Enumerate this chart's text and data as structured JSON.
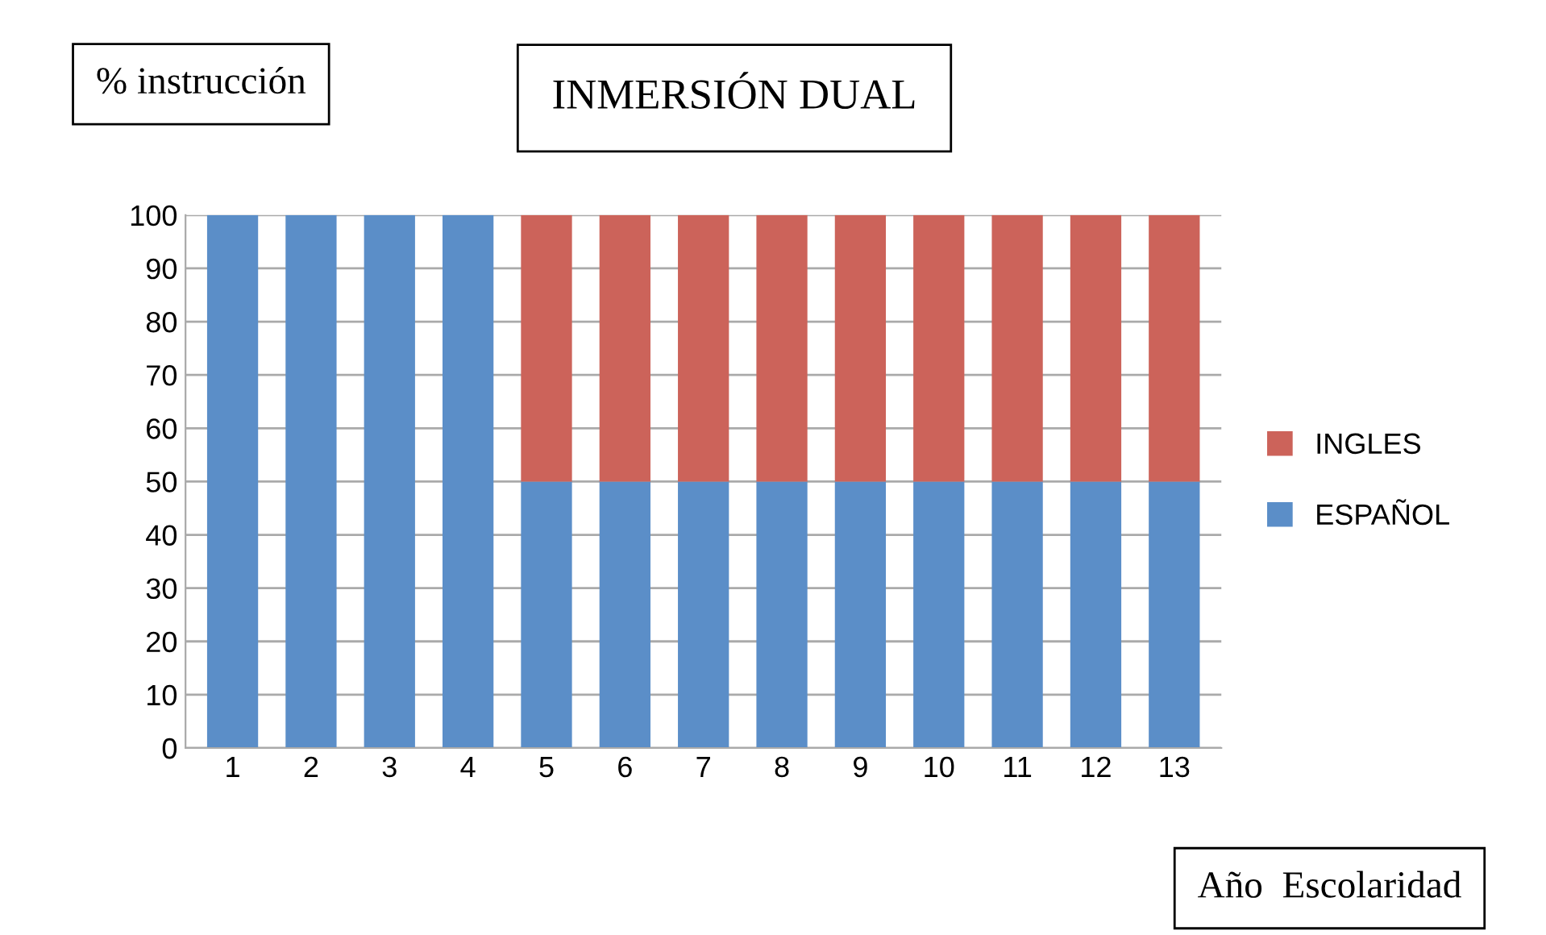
{
  "chart_data": {
    "type": "bar",
    "stacked": true,
    "title": "INMERSIÓN DUAL",
    "ylabel": "% instrucción",
    "xlabel": "Año  Escolaridad",
    "categories": [
      "1",
      "2",
      "3",
      "4",
      "5",
      "6",
      "7",
      "8",
      "9",
      "10",
      "11",
      "12",
      "13"
    ],
    "series": [
      {
        "name": "ESPAÑOL",
        "color": "#5b8ec8",
        "values": [
          100,
          100,
          100,
          100,
          50,
          50,
          50,
          50,
          50,
          50,
          50,
          50,
          50
        ]
      },
      {
        "name": "INGLES",
        "color": "#cc635a",
        "values": [
          0,
          0,
          0,
          0,
          50,
          50,
          50,
          50,
          50,
          50,
          50,
          50,
          50
        ]
      }
    ],
    "ylim": [
      0,
      100
    ],
    "yticks": [
      0,
      10,
      20,
      30,
      40,
      50,
      60,
      70,
      80,
      90,
      100
    ],
    "grid": "y",
    "legend": "right"
  }
}
